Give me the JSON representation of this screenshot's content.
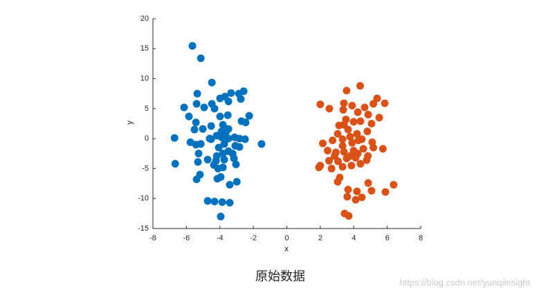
{
  "chart_data": {
    "type": "scatter",
    "caption": "原始数据",
    "xlabel": "x",
    "ylabel": "y",
    "xlim": [
      -8,
      8
    ],
    "ylim": [
      -15,
      20
    ],
    "xticks": [
      -8,
      -6,
      -4,
      -2,
      0,
      2,
      4,
      6,
      8
    ],
    "yticks": [
      -15,
      -10,
      -5,
      0,
      5,
      10,
      15,
      20
    ],
    "grid": false,
    "series": [
      {
        "color": "#0072bd",
        "x": [
          -5.64,
          -5.14,
          -4.48,
          -5.35,
          -6.14,
          -5.39,
          -4.94,
          -4.48,
          -5.85,
          -5.43,
          -5.52,
          -5.02,
          -4.52,
          -6.71,
          -5.76,
          -5.43,
          -5.14,
          -5.27,
          -6.67,
          -5.31,
          -4.73,
          -5.19,
          -5.39,
          -4.61,
          -4.73,
          -4.32,
          -3.86,
          -3.41,
          -3.95,
          -4.15,
          -3.95,
          -3.41,
          -2.99,
          -4.36,
          -3.82,
          -4.19,
          -3.82,
          -4.07,
          -3.49,
          -3.04,
          -3.16,
          -2.83,
          -2.5,
          -2.83,
          -3.12,
          -3.49,
          -3.9,
          -3.82,
          -3.99,
          -3.53,
          -4.32,
          -3.7,
          -3.33,
          -3.99,
          -3.49,
          -2.87,
          -2.58,
          -2.75,
          -2.25,
          -2.46,
          -2.71,
          -1.51,
          -3.74,
          -3.9,
          -4.19,
          -3.08,
          -3.74,
          -4.11,
          -4.52,
          -3.49,
          -3.66,
          -3.24,
          -4.23
        ],
        "y": [
          15.47,
          13.4,
          9.35,
          7.5,
          5.2,
          5.8,
          5.2,
          5.8,
          3.7,
          2.7,
          1.5,
          1.6,
          2.1,
          0.1,
          -0.6,
          -1.0,
          -0.9,
          -2.5,
          -4.2,
          -3.9,
          -3.5,
          -6.0,
          -6.8,
          0,
          -10.4,
          -10.5,
          -10.6,
          -10.7,
          -13.0,
          -6.7,
          -6.4,
          -7.7,
          -7.2,
          -4.4,
          -4.8,
          -2.9,
          -2.5,
          -1.5,
          -2.1,
          -4.3,
          -3.3,
          -1.4,
          -0.1,
          0,
          0.2,
          1.6,
          1.2,
          2.3,
          3.7,
          3.9,
          5.0,
          7.0,
          7.6,
          6.7,
          6.2,
          7.5,
          7.9,
          6.6,
          3.8,
          2.7,
          2.9,
          -0.9,
          -0.9,
          0.2,
          0.5,
          -1.2,
          -3.5,
          -5.0,
          -0.1,
          0,
          0.9,
          -2.5,
          -3.7
        ]
      },
      {
        "color": "#d95319",
        "x": [
          4.38,
          3.57,
          5.39,
          5.85,
          2.0,
          2.54,
          3.41,
          3.9,
          4.65,
          5.17,
          3.37,
          4.24,
          4.86,
          5.52,
          3.53,
          3.99,
          4.4,
          5.06,
          3.12,
          3.66,
          4.19,
          4.81,
          3.04,
          2.15,
          2.73,
          3.33,
          3.9,
          4.48,
          5.1,
          2.44,
          2.93,
          3.41,
          3.99,
          4.57,
          5.17,
          5.74,
          2.52,
          3.06,
          3.57,
          4.11,
          4.77,
          1.92,
          2.67,
          3.33,
          3.86,
          4.4,
          3.16,
          3.04,
          4.86,
          3.66,
          4.19,
          5.06,
          6.38,
          5.89,
          3.61,
          4.11,
          4.48,
          3.45,
          3.7,
          3.33,
          3.78,
          4.27,
          2.85,
          4.24,
          3.78,
          4.84,
          3.41,
          2.0
        ],
        "y": [
          8.8,
          8.0,
          6.7,
          5.9,
          5.7,
          5.0,
          5.9,
          5.5,
          5.2,
          5.8,
          4.8,
          4.4,
          4.0,
          3.5,
          3.2,
          2.8,
          2.9,
          2.5,
          2.2,
          1.5,
          0.8,
          1.2,
          0.8,
          -0.8,
          -0.3,
          -1.2,
          -0.7,
          -0.1,
          -0.6,
          -2.0,
          -2.3,
          -2.2,
          -2.0,
          -1.7,
          -1.5,
          -1.7,
          -3.7,
          -3.8,
          -3.3,
          -3.2,
          -3.6,
          -4.8,
          -5.0,
          -4.7,
          -4.5,
          -4.2,
          -6.5,
          -7.2,
          -7.4,
          -8.5,
          -8.8,
          -8.7,
          -7.7,
          -8.9,
          -9.7,
          -10.2,
          -9.8,
          -12.5,
          -12.9,
          -0.1,
          0.3,
          -0.3,
          -2.9,
          -2.5,
          -2.9,
          -2.9,
          2.3,
          -4.5
        ]
      }
    ]
  },
  "watermark": "https://blog.csdn.net/yunqiinsight"
}
